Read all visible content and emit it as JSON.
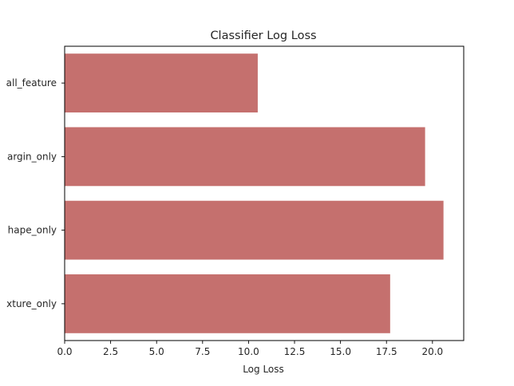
{
  "chart_data": {
    "type": "bar",
    "orientation": "horizontal",
    "title": "Classifier Log Loss",
    "xlabel": "Log Loss",
    "ylabel": "",
    "categories": [
      "all_feature",
      "argin_only",
      "hape_only",
      "xture_only"
    ],
    "values": [
      10.5,
      19.6,
      20.6,
      17.7
    ],
    "xlim": [
      0,
      21.7
    ],
    "xticks": [
      0.0,
      2.5,
      5.0,
      7.5,
      10.0,
      12.5,
      15.0,
      17.5,
      20.0
    ],
    "xtick_labels": [
      "0.0",
      "2.5",
      "5.0",
      "7.5",
      "10.0",
      "12.5",
      "15.0",
      "17.5",
      "20.0"
    ],
    "grid": false,
    "legend": "none",
    "bar_color": "#c5706e"
  }
}
